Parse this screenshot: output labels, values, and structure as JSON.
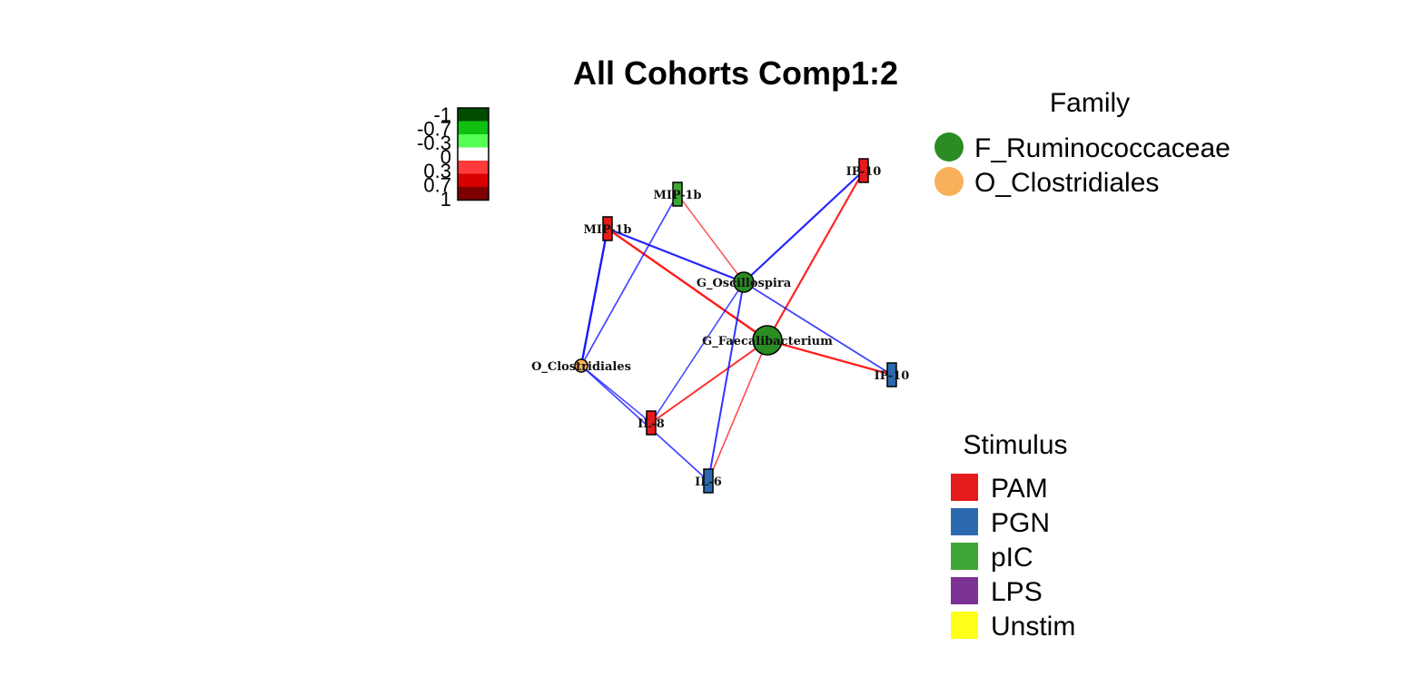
{
  "title": "All Cohorts Comp1:2",
  "colors": {
    "positive_edge": "#ff0000",
    "negative_edge": "#0000ff",
    "PAM": "#e41a1c",
    "PGN": "#2c6ab0",
    "pIC": "#3fa535",
    "LPS": "#7b3294",
    "Unstim": "#ffff1a",
    "F_Ruminococcaceae": "#2a8c23",
    "O_Clostridiales": "#f8b05a"
  },
  "color_scale": {
    "ticks": [
      "-1",
      "-0.7",
      "-0.3",
      "0",
      "0.3",
      "0.7",
      "1"
    ],
    "colors": [
      "#004d00",
      "#10c010",
      "#55ff55",
      "#ffffff",
      "#ff3a3a",
      "#d90000",
      "#7f0000"
    ]
  },
  "family_legend": {
    "title": "Family",
    "items": [
      {
        "label": "F_Ruminococcaceae",
        "color": "#2a8c23"
      },
      {
        "label": "O_Clostridiales",
        "color": "#f8b05a"
      }
    ]
  },
  "stimulus_legend": {
    "title": "Stimulus",
    "items": [
      {
        "label": "PAM",
        "color": "#e41a1c"
      },
      {
        "label": "PGN",
        "color": "#2c6ab0"
      },
      {
        "label": "pIC",
        "color": "#3fa535"
      },
      {
        "label": "LPS",
        "color": "#7b3294"
      },
      {
        "label": "Unstim",
        "color": "#ffff1a"
      }
    ]
  },
  "nodes": [
    {
      "id": "ip10_pam",
      "label": "IP-10",
      "kind": "cytokine",
      "stimulus": "PAM"
    },
    {
      "id": "mip1b_pic",
      "label": "MIP-1b",
      "kind": "cytokine",
      "stimulus": "pIC"
    },
    {
      "id": "mip1b_pam",
      "label": "MIP-1b",
      "kind": "cytokine",
      "stimulus": "PAM"
    },
    {
      "id": "oscillospira",
      "label": "G_Oscillospira",
      "kind": "taxon",
      "family": "F_Ruminococcaceae"
    },
    {
      "id": "faecalibacterium",
      "label": "G_Faecalibacterium",
      "kind": "taxon",
      "family": "F_Ruminococcaceae"
    },
    {
      "id": "ip10_pgn",
      "label": "IP-10",
      "kind": "cytokine",
      "stimulus": "PGN"
    },
    {
      "id": "o_clostridiales",
      "label": "O_Clostridiales",
      "kind": "taxon",
      "family": "O_Clostridiales"
    },
    {
      "id": "il8_pam",
      "label": "IL-8",
      "kind": "cytokine",
      "stimulus": "PAM"
    },
    {
      "id": "il6_pgn",
      "label": "IL-6",
      "kind": "cytokine",
      "stimulus": "PGN"
    }
  ],
  "edges": [
    {
      "from": "oscillospira",
      "to": "ip10_pam",
      "sign": "negative",
      "strength": 0.8
    },
    {
      "from": "faecalibacterium",
      "to": "ip10_pam",
      "sign": "positive",
      "strength": 0.8
    },
    {
      "from": "oscillospira",
      "to": "mip1b_pic",
      "sign": "positive",
      "strength": 0.45
    },
    {
      "from": "oscillospira",
      "to": "mip1b_pam",
      "sign": "negative",
      "strength": 0.8
    },
    {
      "from": "faecalibacterium",
      "to": "mip1b_pam",
      "sign": "positive",
      "strength": 0.9
    },
    {
      "from": "o_clostridiales",
      "to": "mip1b_pam",
      "sign": "negative",
      "strength": 0.9
    },
    {
      "from": "o_clostridiales",
      "to": "mip1b_pic",
      "sign": "negative",
      "strength": 0.55
    },
    {
      "from": "oscillospira",
      "to": "ip10_pgn",
      "sign": "negative",
      "strength": 0.6
    },
    {
      "from": "faecalibacterium",
      "to": "ip10_pgn",
      "sign": "positive",
      "strength": 0.85
    },
    {
      "from": "faecalibacterium",
      "to": "il8_pam",
      "sign": "positive",
      "strength": 0.7
    },
    {
      "from": "faecalibacterium",
      "to": "il6_pgn",
      "sign": "positive",
      "strength": 0.5
    },
    {
      "from": "oscillospira",
      "to": "il8_pam",
      "sign": "negative",
      "strength": 0.5
    },
    {
      "from": "oscillospira",
      "to": "il6_pgn",
      "sign": "negative",
      "strength": 0.7
    },
    {
      "from": "o_clostridiales",
      "to": "il8_pam",
      "sign": "negative",
      "strength": 0.5
    },
    {
      "from": "o_clostridiales",
      "to": "il6_pgn",
      "sign": "negative",
      "strength": 0.55
    }
  ]
}
